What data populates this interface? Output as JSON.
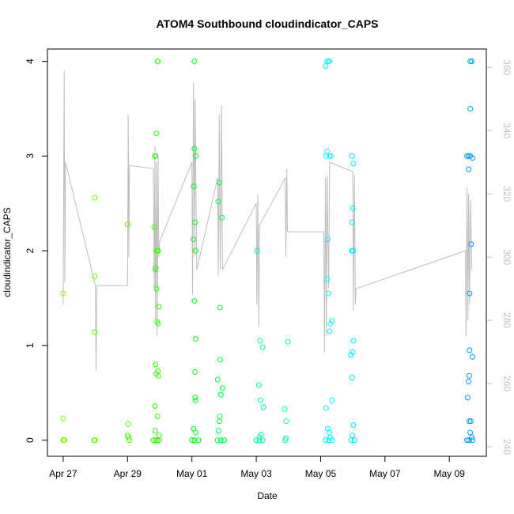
{
  "chart_data": {
    "type": "scatter",
    "title": "ATOM4 Southbound cloudindicator_CAPS",
    "xlabel": "Date",
    "ylabel": "cloudindicator_CAPS",
    "xlim": [
      -0.49,
      13.15
    ],
    "ylim": [
      -0.17,
      4.13
    ],
    "y2lim": [
      237,
      365.8
    ],
    "xticks": [
      {
        "value": 0,
        "label": "Apr 27"
      },
      {
        "value": 2,
        "label": "Apr 29"
      },
      {
        "value": 4,
        "label": "May 01"
      },
      {
        "value": 6,
        "label": "May 03"
      },
      {
        "value": 8,
        "label": "May 05"
      },
      {
        "value": 10,
        "label": "May 07"
      },
      {
        "value": 12,
        "label": "May 09"
      }
    ],
    "yticks": [
      0,
      1,
      2,
      3,
      4
    ],
    "y2ticks": [
      240,
      260,
      280,
      300,
      320,
      340,
      360
    ],
    "series": [
      {
        "type": "line",
        "axis": "y2",
        "color": "#bebebe",
        "x": [
          0,
          0.03,
          0.05,
          0.07,
          1.0,
          1.02,
          1.05,
          2.0,
          2.02,
          2.04,
          2.06,
          2.8,
          2.83,
          2.85,
          2.87,
          2.9,
          2.92,
          2.95,
          2.97,
          3.0,
          4.0,
          4.02,
          4.05,
          4.08,
          4.1,
          4.15,
          4.8,
          4.82,
          4.85,
          4.88,
          4.92,
          4.95,
          6.0,
          6.02,
          6.05,
          6.08,
          6.1,
          6.9,
          6.92,
          6.95,
          6.97,
          8.1,
          8.12,
          8.15,
          8.18,
          8.2,
          8.25,
          8.28,
          9.0,
          9.02,
          9.05,
          9.08,
          9.1,
          12.5,
          12.52,
          12.55,
          12.58,
          12.6,
          12.63,
          12.66,
          12.7
        ],
        "values": [
          285,
          359,
          292,
          330,
          291,
          264,
          291,
          291,
          345,
          300,
          329,
          328,
          290,
          335,
          280,
          330,
          275,
          332,
          300,
          305,
          330,
          288,
          355,
          300,
          350,
          296,
          325,
          294,
          345,
          296,
          348,
          296,
          317,
          285,
          320,
          278,
          310,
          325,
          300,
          328,
          308,
          308,
          270,
          325,
          275,
          326,
          290,
          330,
          327,
          283,
          326,
          285,
          290,
          302,
          275,
          322,
          280,
          320,
          285,
          318,
          296
        ]
      },
      {
        "type": "scatter",
        "color": "#7fff00",
        "x": [
          0,
          0,
          0,
          0.02,
          0.04
        ],
        "values": [
          1.55,
          0.23,
          0,
          0,
          0
        ]
      },
      {
        "type": "scatter",
        "color": "#66ff00",
        "x": [
          0.98,
          0.98,
          0.98,
          0.96,
          0.99
        ],
        "values": [
          2.56,
          1.73,
          1.14,
          0,
          0
        ]
      },
      {
        "type": "scatter",
        "color": "#4dff00",
        "x": [
          2.0,
          2.02,
          2.0,
          2.03,
          2.05
        ],
        "values": [
          2.28,
          0.17,
          0.05,
          0.03,
          0
        ]
      },
      {
        "type": "scatter",
        "color": "#33ff00",
        "x": [
          2.93,
          2.94,
          2.9,
          2.85,
          2.87,
          2.83,
          2.91,
          2.95,
          2.88,
          2.86,
          2.9,
          2.97,
          2.92,
          2.95,
          2.87,
          2.94,
          2.89,
          2.96,
          2.85,
          2.93,
          2.86,
          2.98,
          2.8,
          2.86,
          2.92,
          2.98
        ],
        "values": [
          4,
          4,
          3.24,
          3,
          3,
          2.25,
          2,
          2,
          1.82,
          1.8,
          1.6,
          1.41,
          1.25,
          1.23,
          0.8,
          0.73,
          0.7,
          0.68,
          0.36,
          0.25,
          0.1,
          0.05,
          0,
          0,
          0,
          0
        ]
      },
      {
        "type": "scatter",
        "color": "#00ff1a",
        "x": [
          4.08,
          4.08,
          4.12,
          4.06,
          4.1,
          4.05,
          4.11,
          4.08,
          4.12,
          4.1,
          4.1,
          4.11,
          4.05,
          4.12,
          4.0,
          4.08,
          4.2
        ],
        "values": [
          4,
          3.08,
          3,
          2.68,
          2.3,
          2.12,
          2,
          1.47,
          1.07,
          0.72,
          0.45,
          0.42,
          0.12,
          0.08,
          0,
          0,
          0
        ]
      },
      {
        "type": "scatter",
        "color": "#00ff40",
        "x": [
          4.85,
          4.82,
          4.93,
          4.87,
          4.88,
          4.8,
          4.95,
          4.9,
          4.86,
          4.85,
          4.83,
          4.8,
          4.9,
          5.0
        ],
        "values": [
          2.72,
          2.52,
          2.35,
          1.4,
          0.85,
          0.64,
          0.55,
          0.48,
          0.25,
          0.2,
          0.1,
          0,
          0,
          0
        ]
      },
      {
        "type": "scatter",
        "color": "#00ff99",
        "x": [
          6.03,
          6.12,
          6.2,
          6.08,
          6.13,
          6.22,
          6.15,
          6.1,
          6.0,
          6.1,
          6.2
        ],
        "values": [
          2,
          1.05,
          0.98,
          0.58,
          0.42,
          0.35,
          0.06,
          0.03,
          0,
          0,
          0
        ]
      },
      {
        "type": "scatter",
        "color": "#00ffb3",
        "x": [
          6.98,
          6.88,
          6.93,
          6.92,
          6.9
        ],
        "values": [
          1.04,
          0.33,
          0.2,
          0.02,
          0
        ]
      },
      {
        "type": "scatter",
        "color": "#00ffff",
        "x": [
          8.2,
          8.25,
          8.28,
          8.15,
          8.2,
          8.17,
          8.28,
          8.32,
          8.22,
          8.2,
          8.25,
          8.35,
          8.3,
          8.28,
          8.35,
          8.17,
          8.22,
          8.27,
          8.3,
          8.15,
          8.25,
          8.35
        ],
        "values": [
          4,
          4,
          4,
          3.95,
          3.05,
          3,
          3,
          3,
          2.12,
          1.7,
          1.55,
          1.26,
          1.23,
          1.15,
          0.42,
          0.34,
          0.12,
          0.08,
          0.03,
          0,
          0,
          0
        ]
      },
      {
        "type": "scatter",
        "color": "#00e6ff",
        "x": [
          8.98,
          9.02,
          9.0,
          8.98,
          8.97,
          9.01,
          9.02,
          9.0,
          8.94,
          8.98,
          9.02,
          8.99,
          8.95,
          9.05
        ],
        "values": [
          3,
          2.92,
          2.45,
          2.3,
          2,
          2,
          1.05,
          0.93,
          0.9,
          0.66,
          0.16,
          0.05,
          0,
          0
        ]
      },
      {
        "type": "scatter",
        "color": "#0099ff",
        "x": [
          12.65,
          12.7,
          12.65,
          12.55,
          12.6,
          12.65,
          12.72,
          12.6,
          12.68,
          12.63,
          12.63,
          12.72,
          12.62,
          12.6,
          12.57,
          12.62,
          12.67,
          12.65,
          12.7,
          12.55,
          12.62,
          12.72
        ],
        "values": [
          4,
          4,
          3.5,
          3,
          3,
          3,
          2.98,
          2.86,
          2.07,
          1.55,
          0.95,
          0.88,
          0.68,
          0.62,
          0.45,
          0.2,
          0.2,
          0.08,
          0.03,
          0,
          0,
          0
        ]
      }
    ]
  }
}
